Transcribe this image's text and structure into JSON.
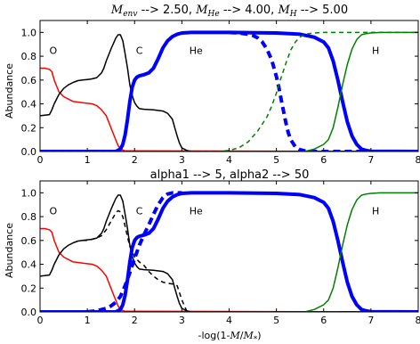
{
  "chart_data": [
    {
      "type": "line",
      "title": "M_env --> 2.50, M_He --> 4.00, M_H --> 5.00",
      "title_parts": {
        "m_env_symbol": "M",
        "m_env_sub": "env",
        "m_env_value": " --> 2.50, ",
        "m_he_symbol": "M",
        "m_he_sub": "He",
        "m_he_value": " --> 4.00, ",
        "m_h_symbol": "M",
        "m_h_sub": "H",
        "m_h_value": " --> 5.00"
      },
      "ylabel": "Abundance",
      "xlabel": "",
      "xlim": [
        0,
        8
      ],
      "ylim": [
        0,
        1.1
      ],
      "xticks": [
        "0",
        "1",
        "2",
        "3",
        "4",
        "5",
        "6",
        "7",
        "8"
      ],
      "yticks": [
        "0.0",
        "0.2",
        "0.4",
        "0.6",
        "0.8",
        "1.0"
      ],
      "grid": false,
      "annotations": [
        {
          "text": "O",
          "x": 0.28,
          "y": 0.82
        },
        {
          "text": "C",
          "x": 2.1,
          "y": 0.82
        },
        {
          "text": "He",
          "x": 3.3,
          "y": 0.82
        },
        {
          "text": "H",
          "x": 7.1,
          "y": 0.82
        }
      ],
      "series": [
        {
          "element": "O",
          "color": "#ff0000",
          "style": "solid",
          "width": 1.5,
          "x": [
            0,
            0.1,
            0.2,
            0.25,
            0.3,
            0.35,
            0.4,
            0.5,
            0.6,
            0.7,
            0.8,
            0.9,
            1.0,
            1.1,
            1.2,
            1.3,
            1.4,
            1.5,
            1.55,
            1.6,
            1.65,
            1.7,
            1.8,
            8
          ],
          "y": [
            0.7,
            0.7,
            0.69,
            0.67,
            0.6,
            0.55,
            0.5,
            0.46,
            0.44,
            0.42,
            0.415,
            0.41,
            0.405,
            0.4,
            0.385,
            0.35,
            0.3,
            0.2,
            0.15,
            0.1,
            0.05,
            0.02,
            0.005,
            0.0
          ]
        },
        {
          "element": "C",
          "color": "#000000",
          "style": "solid",
          "width": 1.5,
          "x": [
            0,
            0.2,
            0.25,
            0.3,
            0.4,
            0.5,
            0.6,
            0.7,
            0.8,
            0.9,
            1.0,
            1.1,
            1.2,
            1.3,
            1.35,
            1.4,
            1.5,
            1.6,
            1.65,
            1.7,
            1.75,
            1.8,
            1.85,
            1.9,
            1.95,
            2.0,
            2.05,
            2.1,
            2.2,
            2.4,
            2.6,
            2.7,
            2.8,
            2.85,
            2.9,
            2.95,
            3.0,
            3.1,
            3.2,
            8
          ],
          "y": [
            0.3,
            0.31,
            0.35,
            0.4,
            0.48,
            0.53,
            0.56,
            0.58,
            0.595,
            0.6,
            0.605,
            0.61,
            0.62,
            0.66,
            0.7,
            0.76,
            0.86,
            0.95,
            0.98,
            0.98,
            0.93,
            0.82,
            0.7,
            0.56,
            0.47,
            0.41,
            0.38,
            0.36,
            0.355,
            0.35,
            0.34,
            0.32,
            0.27,
            0.2,
            0.13,
            0.07,
            0.03,
            0.01,
            0.0,
            0.0
          ]
        },
        {
          "element": "He",
          "color": "#0000ff",
          "style": "solid",
          "width": 4,
          "x": [
            0,
            1.6,
            1.7,
            1.75,
            1.8,
            1.85,
            1.9,
            1.95,
            2.0,
            2.05,
            2.1,
            2.2,
            2.3,
            2.4,
            2.5,
            2.6,
            2.7,
            2.8,
            2.9,
            3.0,
            3.2,
            3.5,
            4.0,
            5.0,
            5.5,
            5.8,
            6.0,
            6.1,
            6.2,
            6.3,
            6.4,
            6.5,
            6.6,
            6.7,
            6.8,
            6.9,
            7.0,
            8
          ],
          "y": [
            0.0,
            0.0,
            0.02,
            0.06,
            0.14,
            0.27,
            0.42,
            0.54,
            0.6,
            0.625,
            0.635,
            0.645,
            0.66,
            0.7,
            0.78,
            0.87,
            0.93,
            0.965,
            0.985,
            0.995,
            1.0,
            1.0,
            1.0,
            0.995,
            0.985,
            0.96,
            0.92,
            0.87,
            0.76,
            0.6,
            0.42,
            0.25,
            0.13,
            0.06,
            0.02,
            0.008,
            0.002,
            0.0
          ]
        },
        {
          "element": "He (dashed)",
          "color": "#0000ff",
          "style": "dashed",
          "width": 4,
          "x": [
            4.0,
            4.2,
            4.4,
            4.5,
            4.6,
            4.7,
            4.8,
            4.9,
            5.0,
            5.05,
            5.1,
            5.15,
            5.2,
            5.25,
            5.3,
            5.4,
            5.5,
            5.6,
            5.8,
            6.0,
            8
          ],
          "y": [
            1.0,
            0.995,
            0.985,
            0.975,
            0.955,
            0.92,
            0.86,
            0.77,
            0.63,
            0.54,
            0.44,
            0.34,
            0.24,
            0.16,
            0.1,
            0.04,
            0.015,
            0.005,
            0.0,
            0.0,
            0.0
          ]
        },
        {
          "element": "H (dashed)",
          "color": "#008000",
          "style": "dashed",
          "width": 1.5,
          "x": [
            0,
            3.8,
            4.0,
            4.2,
            4.4,
            4.6,
            4.8,
            4.9,
            5.0,
            5.1,
            5.2,
            5.3,
            5.4,
            5.5,
            5.6,
            5.8,
            6.0,
            8
          ],
          "y": [
            0.0,
            0.0,
            0.01,
            0.03,
            0.08,
            0.17,
            0.29,
            0.38,
            0.49,
            0.62,
            0.74,
            0.85,
            0.92,
            0.96,
            0.985,
            0.995,
            1.0,
            1.0
          ]
        },
        {
          "element": "H",
          "color": "#008000",
          "style": "solid",
          "width": 1.5,
          "x": [
            0,
            5.6,
            5.8,
            6.0,
            6.1,
            6.2,
            6.3,
            6.4,
            6.5,
            6.6,
            6.7,
            6.8,
            6.9,
            7.0,
            7.2,
            8
          ],
          "y": [
            0.0,
            0.0,
            0.02,
            0.06,
            0.1,
            0.2,
            0.37,
            0.56,
            0.73,
            0.86,
            0.94,
            0.98,
            0.99,
            0.995,
            1.0,
            1.0
          ]
        }
      ]
    },
    {
      "type": "line",
      "title": "alpha1 --> 5, alpha2 --> 50",
      "ylabel": "Abundance",
      "xlabel": "-log(1-M/M*)",
      "xlabel_parts": {
        "prefix": "-log(1-",
        "m": "M",
        "slash": "/",
        "mstar": "M",
        "star_sub": "*",
        "suffix": ")"
      },
      "xlim": [
        0,
        8
      ],
      "ylim": [
        0,
        1.1
      ],
      "xticks": [
        "0",
        "1",
        "2",
        "3",
        "4",
        "5",
        "6",
        "7",
        "8"
      ],
      "yticks": [
        "0.0",
        "0.2",
        "0.4",
        "0.6",
        "0.8",
        "1.0"
      ],
      "grid": false,
      "annotations": [
        {
          "text": "O",
          "x": 0.28,
          "y": 0.82
        },
        {
          "text": "C",
          "x": 2.1,
          "y": 0.82
        },
        {
          "text": "He",
          "x": 3.3,
          "y": 0.82
        },
        {
          "text": "H",
          "x": 7.1,
          "y": 0.82
        }
      ],
      "series": [
        {
          "element": "O",
          "color": "#ff0000",
          "style": "solid",
          "width": 1.5,
          "x": [
            0,
            0.1,
            0.2,
            0.25,
            0.3,
            0.35,
            0.4,
            0.5,
            0.6,
            0.7,
            0.8,
            0.9,
            1.0,
            1.1,
            1.2,
            1.3,
            1.4,
            1.5,
            1.55,
            1.6,
            1.65,
            1.7,
            1.8,
            8
          ],
          "y": [
            0.7,
            0.7,
            0.69,
            0.67,
            0.6,
            0.55,
            0.5,
            0.46,
            0.44,
            0.42,
            0.415,
            0.41,
            0.405,
            0.4,
            0.385,
            0.35,
            0.3,
            0.2,
            0.15,
            0.1,
            0.05,
            0.02,
            0.005,
            0.0
          ]
        },
        {
          "element": "C",
          "color": "#000000",
          "style": "solid",
          "width": 1.5,
          "x": [
            0,
            0.2,
            0.25,
            0.3,
            0.4,
            0.5,
            0.6,
            0.7,
            0.8,
            0.9,
            1.0,
            1.1,
            1.2,
            1.3,
            1.35,
            1.4,
            1.5,
            1.6,
            1.65,
            1.7,
            1.75,
            1.8,
            1.85,
            1.9,
            1.95,
            2.0,
            2.05,
            2.1,
            2.2,
            2.4,
            2.6,
            2.7,
            2.8,
            2.85,
            2.9,
            2.95,
            3.0,
            3.1,
            3.2,
            8
          ],
          "y": [
            0.3,
            0.31,
            0.35,
            0.4,
            0.48,
            0.53,
            0.56,
            0.58,
            0.595,
            0.6,
            0.605,
            0.61,
            0.62,
            0.66,
            0.7,
            0.76,
            0.86,
            0.95,
            0.98,
            0.98,
            0.93,
            0.82,
            0.7,
            0.56,
            0.47,
            0.41,
            0.38,
            0.36,
            0.355,
            0.35,
            0.34,
            0.32,
            0.27,
            0.2,
            0.13,
            0.07,
            0.03,
            0.01,
            0.0,
            0.0
          ]
        },
        {
          "element": "C (dashed)",
          "color": "#000000",
          "style": "dashed",
          "width": 1.5,
          "x": [
            0.9,
            1.0,
            1.1,
            1.2,
            1.3,
            1.4,
            1.5,
            1.6,
            1.65,
            1.7,
            1.75,
            1.8,
            1.85,
            1.9,
            2.0,
            2.1,
            2.2,
            2.3,
            2.4,
            2.5,
            2.6,
            2.7,
            2.8,
            2.9,
            3.0,
            3.1,
            3.2
          ],
          "y": [
            0.6,
            0.6,
            0.61,
            0.62,
            0.64,
            0.69,
            0.76,
            0.83,
            0.85,
            0.84,
            0.8,
            0.72,
            0.63,
            0.55,
            0.46,
            0.42,
            0.39,
            0.34,
            0.3,
            0.27,
            0.25,
            0.24,
            0.235,
            0.22,
            0.1,
            0.01,
            0.0
          ]
        },
        {
          "element": "He",
          "color": "#0000ff",
          "style": "solid",
          "width": 4,
          "x": [
            0,
            1.6,
            1.7,
            1.75,
            1.8,
            1.85,
            1.9,
            1.95,
            2.0,
            2.05,
            2.1,
            2.2,
            2.3,
            2.4,
            2.5,
            2.6,
            2.7,
            2.8,
            2.9,
            3.0,
            3.2,
            3.5,
            4.0,
            5.0,
            5.5,
            5.8,
            6.0,
            6.1,
            6.2,
            6.3,
            6.4,
            6.5,
            6.6,
            6.7,
            6.8,
            6.9,
            7.0,
            8
          ],
          "y": [
            0.0,
            0.0,
            0.02,
            0.06,
            0.14,
            0.27,
            0.42,
            0.54,
            0.6,
            0.625,
            0.635,
            0.645,
            0.66,
            0.7,
            0.78,
            0.87,
            0.93,
            0.965,
            0.985,
            0.995,
            1.0,
            1.0,
            1.0,
            0.995,
            0.985,
            0.96,
            0.92,
            0.87,
            0.76,
            0.6,
            0.42,
            0.25,
            0.13,
            0.06,
            0.02,
            0.008,
            0.002,
            0.0
          ]
        },
        {
          "element": "He (dashed)",
          "color": "#0000ff",
          "style": "dashed",
          "width": 4,
          "x": [
            1.0,
            1.2,
            1.4,
            1.5,
            1.6,
            1.7,
            1.8,
            1.9,
            2.0,
            2.1,
            2.2,
            2.3,
            2.4,
            2.5,
            2.6,
            2.7,
            2.8,
            2.9,
            3.0
          ],
          "y": [
            0.0,
            0.01,
            0.03,
            0.05,
            0.08,
            0.13,
            0.22,
            0.33,
            0.45,
            0.56,
            0.65,
            0.73,
            0.82,
            0.9,
            0.96,
            0.99,
            1.0,
            1.0,
            1.0
          ]
        },
        {
          "element": "H",
          "color": "#008000",
          "style": "solid",
          "width": 1.5,
          "x": [
            0,
            5.6,
            5.8,
            6.0,
            6.1,
            6.2,
            6.3,
            6.4,
            6.5,
            6.6,
            6.7,
            6.8,
            6.9,
            7.0,
            7.2,
            8
          ],
          "y": [
            0.0,
            0.0,
            0.02,
            0.06,
            0.1,
            0.2,
            0.37,
            0.56,
            0.73,
            0.86,
            0.94,
            0.98,
            0.99,
            0.995,
            1.0,
            1.0
          ]
        }
      ]
    }
  ]
}
